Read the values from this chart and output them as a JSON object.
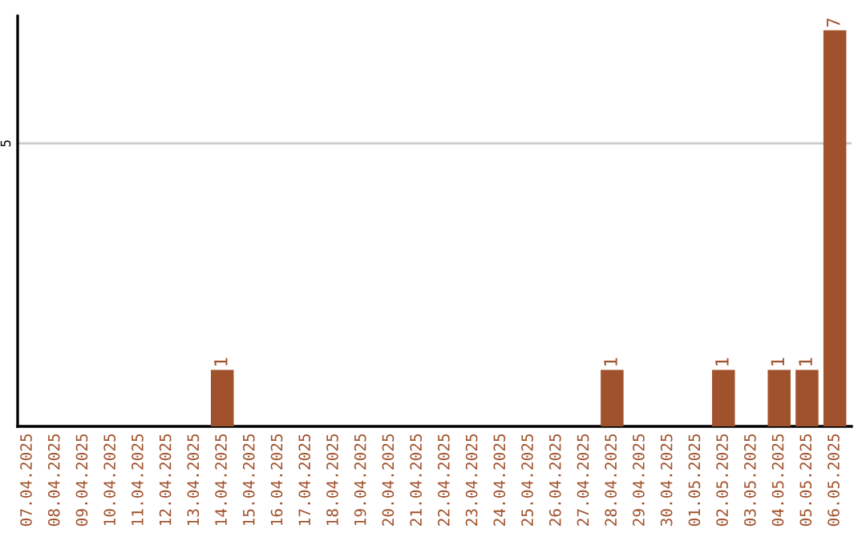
{
  "chart_data": {
    "type": "bar",
    "categories": [
      "07.04.2025",
      "08.04.2025",
      "09.04.2025",
      "10.04.2025",
      "11.04.2025",
      "12.04.2025",
      "13.04.2025",
      "14.04.2025",
      "15.04.2025",
      "16.04.2025",
      "17.04.2025",
      "18.04.2025",
      "19.04.2025",
      "20.04.2025",
      "21.04.2025",
      "22.04.2025",
      "23.04.2025",
      "24.04.2025",
      "25.04.2025",
      "26.04.2025",
      "27.04.2025",
      "28.04.2025",
      "29.04.2025",
      "30.04.2025",
      "01.05.2025",
      "02.05.2025",
      "03.05.2025",
      "04.05.2025",
      "05.05.2025",
      "06.05.2025"
    ],
    "values": [
      0,
      0,
      0,
      0,
      0,
      0,
      0,
      1,
      0,
      0,
      0,
      0,
      0,
      0,
      0,
      0,
      0,
      0,
      0,
      0,
      0,
      1,
      0,
      0,
      0,
      1,
      0,
      1,
      1,
      7
    ],
    "value_labels": [
      null,
      null,
      null,
      null,
      null,
      null,
      null,
      "1",
      null,
      null,
      null,
      null,
      null,
      null,
      null,
      null,
      null,
      null,
      null,
      null,
      null,
      "1",
      null,
      null,
      null,
      "1",
      null,
      "1",
      "1",
      "7"
    ],
    "color": "#a0522d",
    "ylim": [
      0,
      7.25
    ],
    "yticks": [
      5
    ],
    "grid": "y",
    "legend": false
  }
}
